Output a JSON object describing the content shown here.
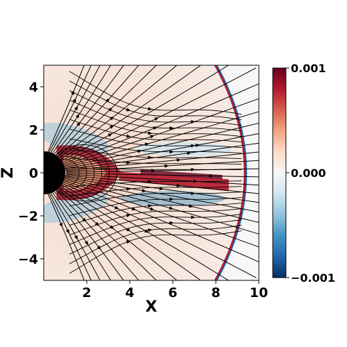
{
  "chart_data": {
    "type": "heatmap",
    "title": "",
    "xlabel": "X",
    "ylabel": "Z",
    "xlim": [
      0,
      10
    ],
    "ylim": [
      -5,
      5
    ],
    "x_ticks": [
      2,
      4,
      6,
      8,
      10
    ],
    "y_ticks": [
      4,
      2,
      0,
      -2,
      -4
    ],
    "x_tick_labels": [
      "2",
      "4",
      "6",
      "8",
      "10"
    ],
    "y_tick_labels": [
      "4",
      "2",
      "0",
      "−2",
      "−4"
    ],
    "colorbar": {
      "range": [
        -0.001,
        0.001
      ],
      "ticks": [
        0.001,
        0.0,
        -0.001
      ],
      "tick_labels": [
        "0.001",
        "0.000",
        "−0.001"
      ],
      "colormap": "RdBu_r",
      "colors": [
        "#053061",
        "#2166ac",
        "#4393c3",
        "#92c5de",
        "#d1e5f0",
        "#f7f7f7",
        "#fddbc7",
        "#f4a582",
        "#d6604d",
        "#b2182b",
        "#67001f"
      ]
    },
    "overlay": "streamlines with arrows",
    "body": "black half-disk planet at origin, radius 1",
    "bow_shock_nose_x": 9.3,
    "current_sheet": "red band along Z≈0 from X≈3.5 to X≈9"
  }
}
